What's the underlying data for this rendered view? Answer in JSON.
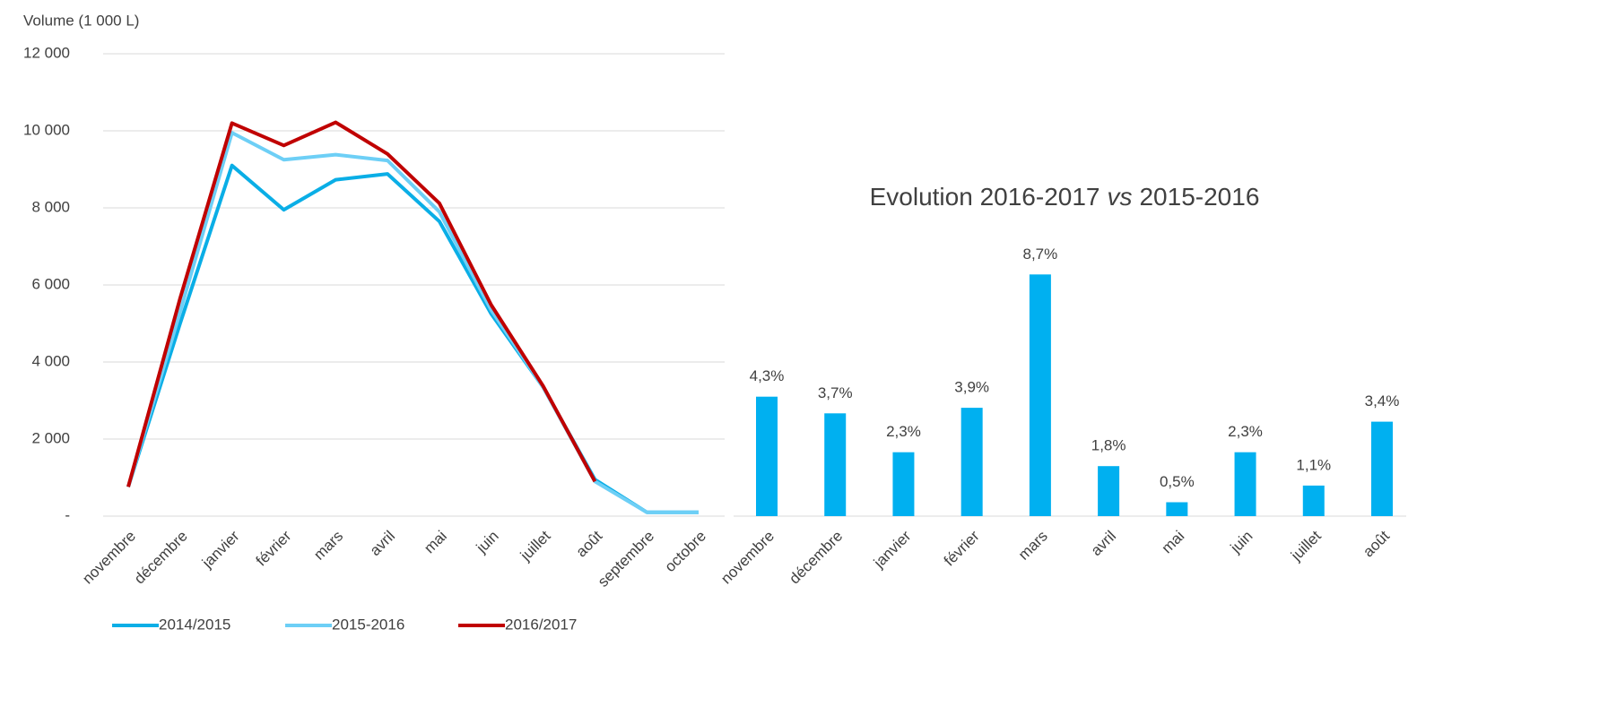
{
  "chart_data": [
    {
      "type": "line",
      "y_label": "Volume (1 000 L)",
      "categories": [
        "novembre",
        "décembre",
        "janvier",
        "février",
        "mars",
        "avril",
        "mai",
        "juin",
        "juillet",
        "août",
        "septembre",
        "octobre"
      ],
      "series": [
        {
          "name": "2014/2015",
          "color": "#0aaee6",
          "values": [
            760,
            5000,
            9100,
            7950,
            8730,
            8880,
            7650,
            5250,
            3350,
            950,
            100,
            100
          ]
        },
        {
          "name": "2015-2016",
          "color": "#6dcff6",
          "values": [
            760,
            5300,
            9950,
            9250,
            9380,
            9230,
            7900,
            5350,
            3350,
            900,
            100,
            100
          ]
        },
        {
          "name": "2016/2017",
          "color": "#c00000",
          "values": [
            760,
            5650,
            10200,
            9620,
            10220,
            9400,
            8120,
            5480,
            3380,
            900,
            null,
            null
          ]
        }
      ],
      "ylim": [
        0,
        12000
      ],
      "yticks": [
        {
          "value": 0,
          "label": "-"
        },
        {
          "value": 2000,
          "label": "2 000"
        },
        {
          "value": 4000,
          "label": "4 000"
        },
        {
          "value": 6000,
          "label": "6 000"
        },
        {
          "value": 8000,
          "label": "8 000"
        },
        {
          "value": 10000,
          "label": "10 000"
        },
        {
          "value": 12000,
          "label": "12 000"
        }
      ],
      "grid": true,
      "legend": "bottom"
    },
    {
      "type": "bar",
      "title": [
        "Evolution 2016-2017",
        "vs",
        "2015-2016"
      ],
      "categories": [
        "novembre",
        "décembre",
        "janvier",
        "février",
        "mars",
        "avril",
        "mai",
        "juin",
        "juillet",
        "août"
      ],
      "values": [
        4.3,
        3.7,
        2.3,
        3.9,
        8.7,
        1.8,
        0.5,
        2.3,
        1.1,
        3.4
      ],
      "value_labels": [
        "4,3%",
        "3,7%",
        "2,3%",
        "3,9%",
        "8,7%",
        "1,8%",
        "0,5%",
        "2,3%",
        "1,1%",
        "3,4%"
      ],
      "color": "#00b0f0"
    }
  ]
}
